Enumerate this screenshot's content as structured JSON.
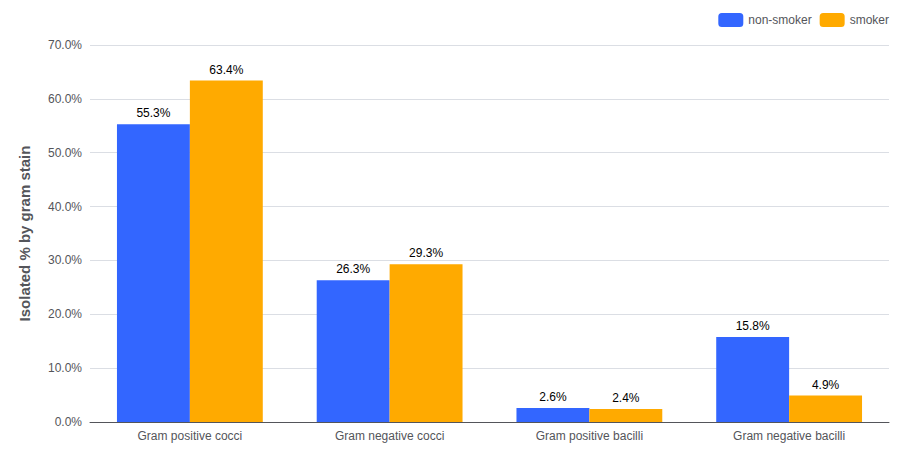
{
  "chart_data": {
    "type": "bar",
    "ylabel": "Isolated % by gram stain",
    "categories": [
      "Gram positive cocci",
      "Gram negative cocci",
      "Gram positive bacilli",
      "Gram negative bacilli"
    ],
    "series": [
      {
        "name": "non-smoker",
        "color": "#3366FF",
        "values": [
          55.3,
          26.3,
          2.6,
          15.8
        ],
        "value_labels": [
          "55.3%",
          "26.3%",
          "2.6%",
          "15.8%"
        ]
      },
      {
        "name": "smoker",
        "color": "#FFAA00",
        "values": [
          63.4,
          29.3,
          2.4,
          4.9
        ],
        "value_labels": [
          "63.4%",
          "29.3%",
          "2.4%",
          "4.9%"
        ]
      }
    ],
    "ylim": [
      0,
      70
    ],
    "yticks": [
      {
        "value": 0,
        "label": "0.0%"
      },
      {
        "value": 10,
        "label": "10.0%"
      },
      {
        "value": 20,
        "label": "20.0%"
      },
      {
        "value": 30,
        "label": "30.0%"
      },
      {
        "value": 40,
        "label": "40.0%"
      },
      {
        "value": 50,
        "label": "50.0%"
      },
      {
        "value": 60,
        "label": "60.0%"
      },
      {
        "value": 70,
        "label": "70.0%"
      }
    ],
    "grid": true,
    "legend": "upper right",
    "data_labels": true
  }
}
